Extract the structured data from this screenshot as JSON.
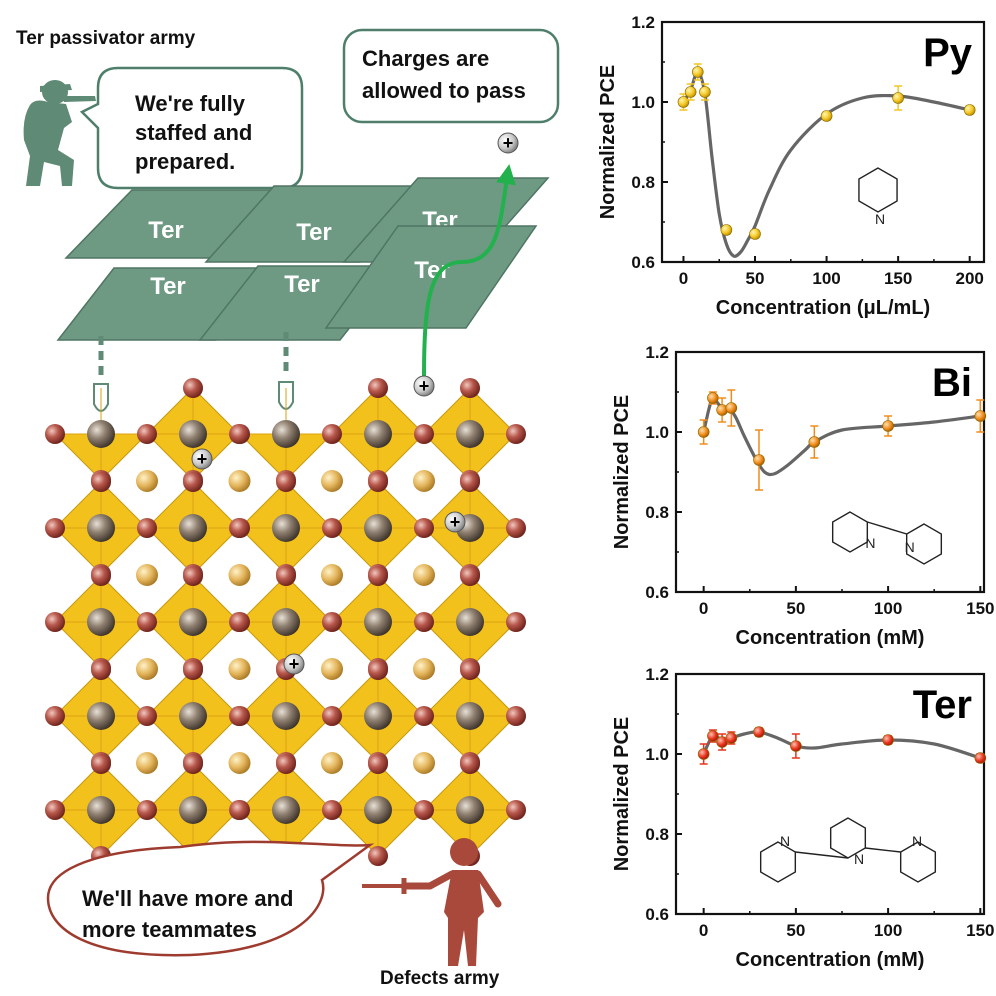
{
  "left_panel": {
    "title": "Ter passivator army",
    "soldier_bubble": [
      "We're fully",
      "staffed and",
      "prepared."
    ],
    "charge_bubble": [
      "Charges are",
      "allowed to pass"
    ],
    "defect_bubble": [
      "We'll have more and",
      "more teammates"
    ],
    "defects_label": "Defects army",
    "ter_label": "Ter",
    "charge_symbol": "+",
    "colors": {
      "ter_sheet": "#6e9a84",
      "octahedron": "#f2c11c",
      "arrow": "#22b14c",
      "bubble_green": "#4f7f6a",
      "bubble_red": "#9e3b2f",
      "soldier": "#5f8a75",
      "defect_figure": "#a8493c"
    }
  },
  "chart_data": [
    {
      "type": "line",
      "tag": "Py",
      "xlabel": "Concentration (μL/mL)",
      "ylabel": "Normalized PCE",
      "xlim": [
        -15,
        210
      ],
      "ylim": [
        0.6,
        1.2
      ],
      "xticks": [
        "0",
        "50",
        "100",
        "150",
        "200"
      ],
      "yticks": [
        "0.6",
        "0.8",
        "1.0",
        "1.2"
      ],
      "marker_color": "#f3c623",
      "points": [
        {
          "x": 0,
          "y": 1.0,
          "err": 0.02
        },
        {
          "x": 5,
          "y": 1.025,
          "err": 0.02
        },
        {
          "x": 10,
          "y": 1.075,
          "err": 0.02
        },
        {
          "x": 15,
          "y": 1.025,
          "err": 0.02
        },
        {
          "x": 30,
          "y": 0.68,
          "err": 0.01
        },
        {
          "x": 50,
          "y": 0.67,
          "err": 0.01
        },
        {
          "x": 100,
          "y": 0.965,
          "err": 0.01
        },
        {
          "x": 150,
          "y": 1.01,
          "err": 0.03
        },
        {
          "x": 200,
          "y": 0.98,
          "err": 0.01
        }
      ],
      "curve": [
        [
          0,
          1.0
        ],
        [
          5,
          1.03
        ],
        [
          10,
          1.075
        ],
        [
          15,
          1.02
        ],
        [
          20,
          0.86
        ],
        [
          25,
          0.72
        ],
        [
          30,
          0.645
        ],
        [
          35,
          0.615
        ],
        [
          40,
          0.625
        ],
        [
          45,
          0.655
        ],
        [
          50,
          0.69
        ],
        [
          60,
          0.78
        ],
        [
          75,
          0.88
        ],
        [
          100,
          0.97
        ],
        [
          125,
          1.01
        ],
        [
          150,
          1.015
        ],
        [
          175,
          1.0
        ],
        [
          200,
          0.98
        ]
      ],
      "molecule": "pyridine"
    },
    {
      "type": "line",
      "tag": "Bi",
      "xlabel": "Concentration (mM)",
      "ylabel": "Normalized PCE",
      "xlim": [
        -15,
        152
      ],
      "ylim": [
        0.6,
        1.2
      ],
      "xticks": [
        "0",
        "50",
        "100",
        "150"
      ],
      "yticks": [
        "0.6",
        "0.8",
        "1.0",
        "1.2"
      ],
      "marker_color": "#f08c1a",
      "points": [
        {
          "x": 0,
          "y": 1.0,
          "err": 0.03
        },
        {
          "x": 5,
          "y": 1.085,
          "err": 0.015
        },
        {
          "x": 10,
          "y": 1.055,
          "err": 0.03
        },
        {
          "x": 15,
          "y": 1.06,
          "err": 0.045
        },
        {
          "x": 30,
          "y": 0.93,
          "err": 0.075
        },
        {
          "x": 60,
          "y": 0.975,
          "err": 0.04
        },
        {
          "x": 100,
          "y": 1.015,
          "err": 0.025
        },
        {
          "x": 150,
          "y": 1.04,
          "err": 0.04
        }
      ],
      "curve": [
        [
          0,
          1.0
        ],
        [
          3,
          1.06
        ],
        [
          5,
          1.085
        ],
        [
          8,
          1.07
        ],
        [
          10,
          1.06
        ],
        [
          13,
          1.06
        ],
        [
          17,
          1.04
        ],
        [
          22,
          0.99
        ],
        [
          28,
          0.935
        ],
        [
          33,
          0.9
        ],
        [
          38,
          0.895
        ],
        [
          45,
          0.915
        ],
        [
          55,
          0.955
        ],
        [
          60,
          0.975
        ],
        [
          75,
          1.005
        ],
        [
          100,
          1.015
        ],
        [
          125,
          1.025
        ],
        [
          150,
          1.04
        ]
      ],
      "molecule": "bipyridine"
    },
    {
      "type": "line",
      "tag": "Ter",
      "xlabel": "Concentration (mM)",
      "ylabel": "Normalized PCE",
      "xlim": [
        -15,
        152
      ],
      "ylim": [
        0.6,
        1.2
      ],
      "xticks": [
        "0",
        "50",
        "100",
        "150"
      ],
      "yticks": [
        "0.6",
        "0.8",
        "1.0",
        "1.2"
      ],
      "marker_color": "#e8331c",
      "points": [
        {
          "x": 0,
          "y": 1.0,
          "err": 0.025
        },
        {
          "x": 5,
          "y": 1.045,
          "err": 0.015
        },
        {
          "x": 10,
          "y": 1.03,
          "err": 0.02
        },
        {
          "x": 15,
          "y": 1.04,
          "err": 0.015
        },
        {
          "x": 30,
          "y": 1.055,
          "err": 0.01
        },
        {
          "x": 50,
          "y": 1.02,
          "err": 0.03
        },
        {
          "x": 100,
          "y": 1.035,
          "err": 0.01
        },
        {
          "x": 150,
          "y": 0.99,
          "err": 0.01
        }
      ],
      "curve": [
        [
          0,
          1.0
        ],
        [
          5,
          1.045
        ],
        [
          10,
          1.035
        ],
        [
          15,
          1.04
        ],
        [
          22,
          1.05
        ],
        [
          30,
          1.055
        ],
        [
          40,
          1.04
        ],
        [
          50,
          1.02
        ],
        [
          60,
          1.015
        ],
        [
          75,
          1.025
        ],
        [
          100,
          1.035
        ],
        [
          125,
          1.025
        ],
        [
          150,
          0.99
        ]
      ],
      "molecule": "terpyridine"
    }
  ]
}
